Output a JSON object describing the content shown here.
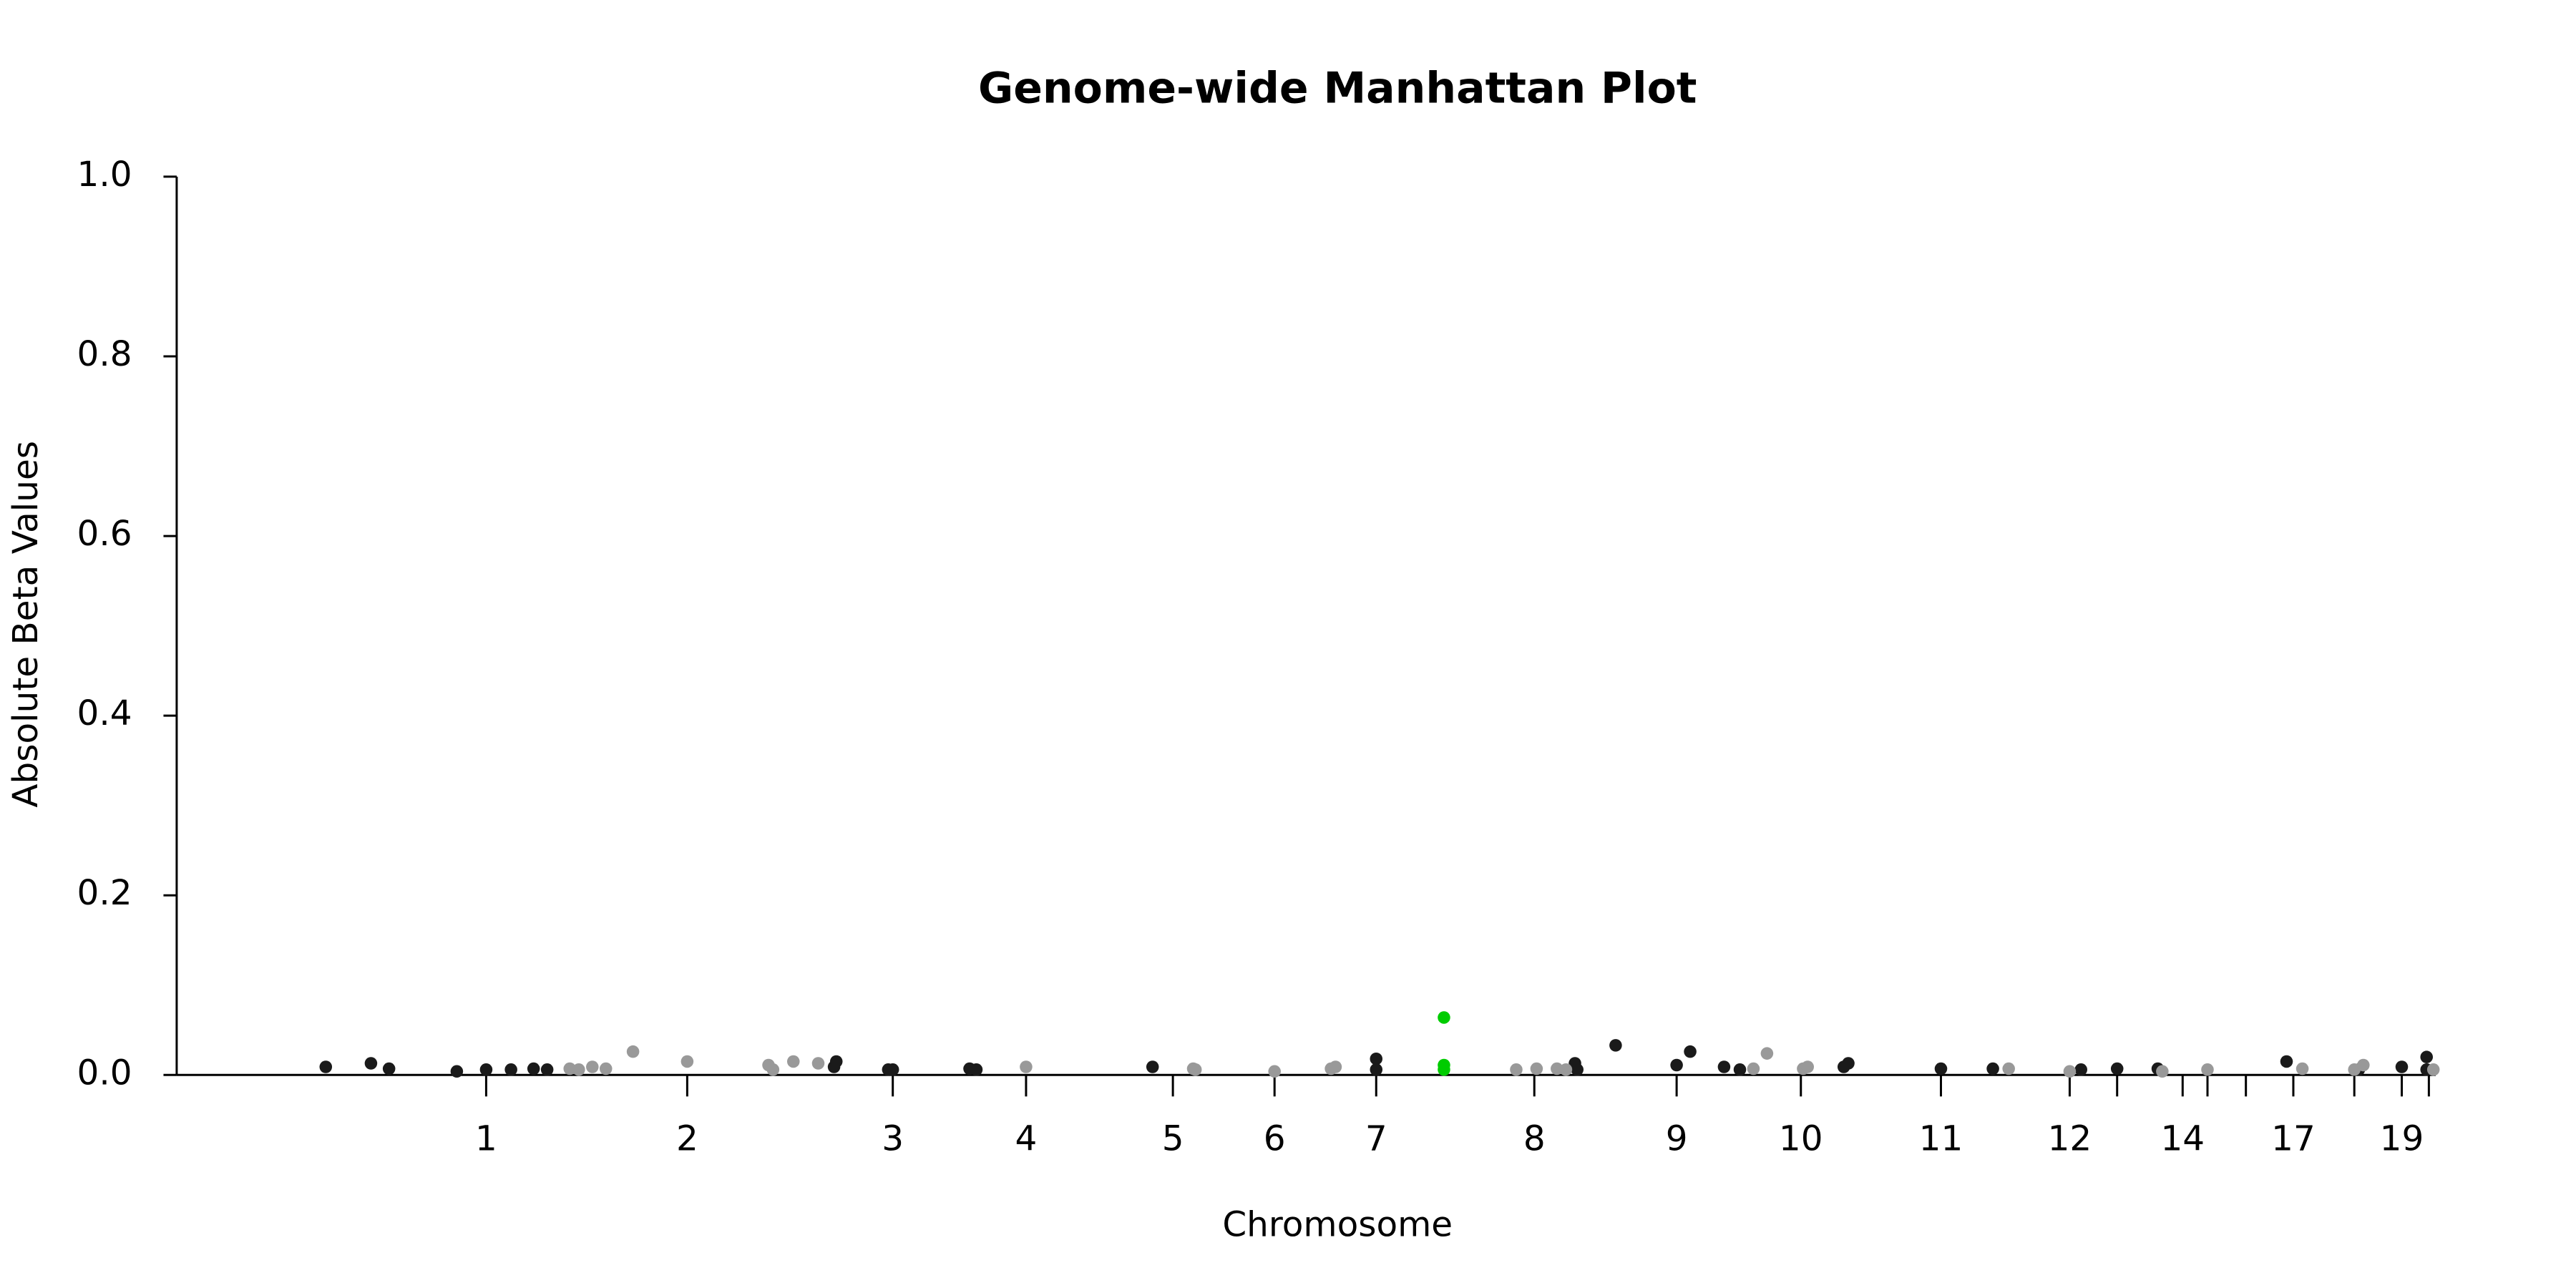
{
  "chart_data": {
    "type": "scatter",
    "title": "Genome-wide Manhattan Plot",
    "xlabel": "Chromosome",
    "ylabel": "Absolute Beta Values",
    "xlim": [
      0,
      100
    ],
    "ylim": [
      0,
      1.0
    ],
    "yticks": [
      {
        "value": 0,
        "label": "0.0"
      },
      {
        "value": 0.2,
        "label": "0.2"
      },
      {
        "value": 0.4,
        "label": "0.4"
      },
      {
        "value": 0.6,
        "label": "0.6"
      },
      {
        "value": 0.8,
        "label": "0.8"
      },
      {
        "value": 1.0,
        "label": "1.0"
      }
    ],
    "xticks": [
      {
        "value": 13.7,
        "label": "1"
      },
      {
        "value": 22.6,
        "label": "2"
      },
      {
        "value": 31.7,
        "label": "3"
      },
      {
        "value": 37.6,
        "label": "4"
      },
      {
        "value": 44.1,
        "label": "5"
      },
      {
        "value": 48.6,
        "label": "6"
      },
      {
        "value": 53.1,
        "label": "7"
      },
      {
        "value": 60.1,
        "label": "8"
      },
      {
        "value": 66.4,
        "label": "9"
      },
      {
        "value": 71.9,
        "label": "10"
      },
      {
        "value": 78.1,
        "label": "11"
      },
      {
        "value": 83.8,
        "label": "12"
      },
      {
        "value": 85.9,
        "label": null
      },
      {
        "value": 88.8,
        "label": "14"
      },
      {
        "value": 89.9,
        "label": null
      },
      {
        "value": 91.6,
        "label": null
      },
      {
        "value": 93.7,
        "label": "17"
      },
      {
        "value": 96.4,
        "label": null
      },
      {
        "value": 98.5,
        "label": "19"
      },
      {
        "value": 99.7,
        "label": null
      }
    ],
    "series": [
      {
        "color": "#1a1a1a",
        "x": [
          6.6,
          8.6,
          9.4,
          12.4,
          13.7,
          14.8,
          15.8,
          16.4,
          29.1,
          29.2,
          31.5,
          31.7,
          35.1,
          35.4,
          43.2,
          53.1,
          53.1,
          61.9,
          62.0,
          63.7,
          66.4,
          67.0,
          68.5,
          69.2,
          73.8,
          74.0,
          78.1,
          80.4,
          84.3,
          85.9,
          87.7,
          93.4,
          96.6,
          98.5,
          99.6,
          99.6
        ],
        "values": [
          0.009,
          0.013,
          0.007,
          0.004,
          0.006,
          0.006,
          0.007,
          0.006,
          0.009,
          0.015,
          0.006,
          0.006,
          0.007,
          0.006,
          0.009,
          0.018,
          0.006,
          0.013,
          0.006,
          0.033,
          0.011,
          0.026,
          0.009,
          0.006,
          0.009,
          0.013,
          0.007,
          0.007,
          0.006,
          0.007,
          0.007,
          0.015,
          0.006,
          0.009,
          0.02,
          0.006
        ]
      },
      {
        "color": "#999999",
        "x": [
          17.4,
          17.8,
          18.4,
          19.0,
          20.2,
          22.6,
          26.2,
          26.4,
          27.3,
          28.4,
          37.6,
          45.0,
          45.1,
          48.6,
          51.1,
          51.3,
          59.3,
          60.2,
          61.1,
          61.5,
          69.8,
          70.4,
          72.0,
          72.2,
          81.1,
          83.8,
          87.9,
          89.9,
          94.1,
          96.4,
          96.8,
          99.9
        ],
        "values": [
          0.007,
          0.006,
          0.009,
          0.007,
          0.026,
          0.015,
          0.011,
          0.006,
          0.015,
          0.013,
          0.009,
          0.007,
          0.006,
          0.004,
          0.007,
          0.009,
          0.006,
          0.007,
          0.007,
          0.006,
          0.007,
          0.024,
          0.007,
          0.009,
          0.007,
          0.004,
          0.004,
          0.006,
          0.007,
          0.006,
          0.011,
          0.006
        ]
      },
      {
        "color": "#00cc00",
        "x": [
          56.1,
          56.1,
          56.1
        ],
        "values": [
          0.064,
          0.011,
          0.006
        ]
      }
    ]
  }
}
